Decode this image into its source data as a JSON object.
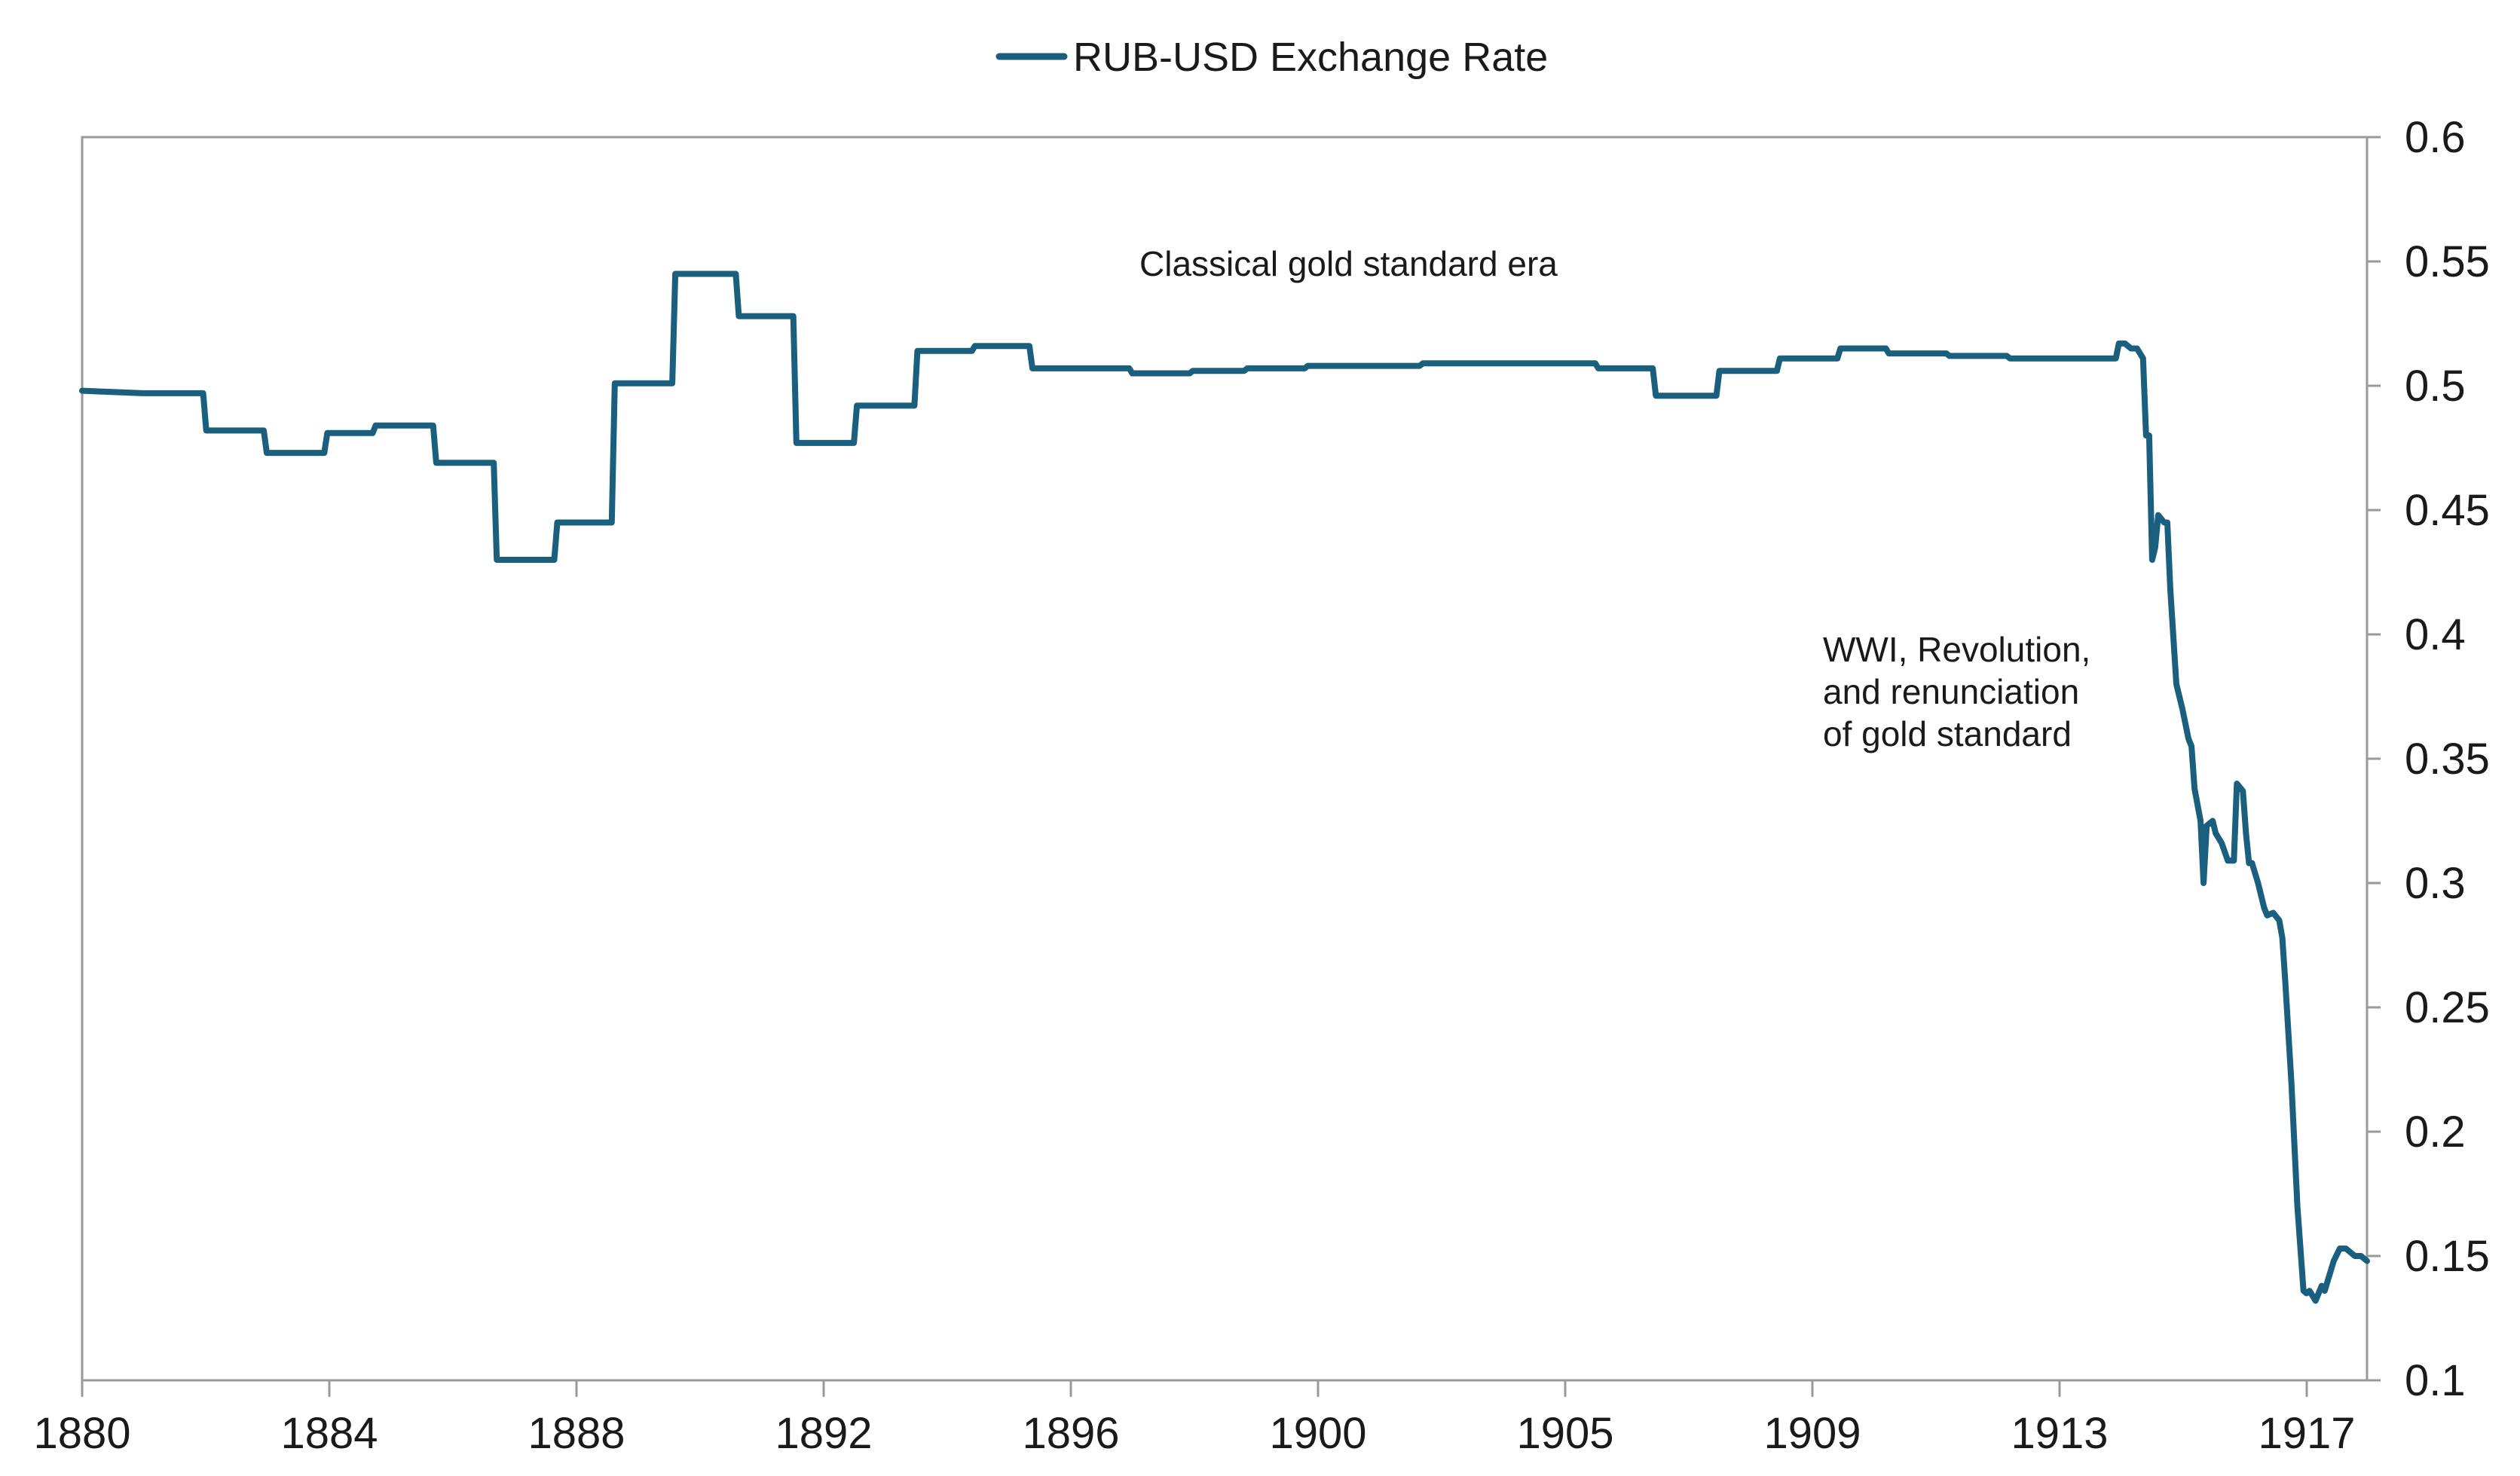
{
  "chart_data": {
    "type": "line",
    "title": "",
    "xlabel": "",
    "ylabel": "",
    "ylim": [
      0.1,
      0.6
    ],
    "y_ticks": [
      "0.1",
      "0.15",
      "0.2",
      "0.25",
      "0.3",
      "0.35",
      "0.4",
      "0.45",
      "0.5",
      "0.55",
      "0.6"
    ],
    "y_axis_side": "right",
    "x_tick_labels": [
      "1880",
      "1884",
      "1888",
      "1892",
      "1896",
      "1900",
      "1905",
      "1909",
      "1913",
      "1917"
    ],
    "grid": false,
    "legend_position": "top-center",
    "series": [
      {
        "name": "RUB-USD Exchange Rate",
        "color": "#1b5f7e",
        "x": [
          1880.0,
          1881.0,
          1882.0,
          1882.05,
          1883.0,
          1883.05,
          1884.0,
          1884.05,
          1884.8,
          1884.85,
          1885.8,
          1885.85,
          1886.8,
          1886.85,
          1887.8,
          1887.85,
          1888.75,
          1888.8,
          1889.75,
          1889.8,
          1890.8,
          1890.85,
          1891.75,
          1891.8,
          1892.75,
          1892.8,
          1893.75,
          1893.8,
          1894.7,
          1894.75,
          1895.65,
          1895.7,
          1897.3,
          1897.35,
          1898.3,
          1898.35,
          1899.2,
          1899.25,
          1900.2,
          1900.25,
          1901.2,
          1901.25,
          1902.1,
          1902.15,
          1903.1,
          1903.15,
          1904.0,
          1904.05,
          1905.0,
          1905.05,
          1905.95,
          1906.0,
          1907.0,
          1907.05,
          1908.0,
          1908.05,
          1909.0,
          1909.05,
          1909.8,
          1909.85,
          1910.8,
          1910.85,
          1911.8,
          1911.85,
          1912.7,
          1912.75,
          1913.6,
          1913.65,
          1913.75,
          1913.85,
          1913.95,
          1914.05,
          1914.1,
          1914.15,
          1914.2,
          1914.25,
          1914.3,
          1914.4,
          1914.45,
          1914.5,
          1914.6,
          1914.7,
          1914.8,
          1914.85,
          1914.9,
          1915.0,
          1915.05,
          1915.1,
          1915.2,
          1915.25,
          1915.3,
          1915.35,
          1915.45,
          1915.55,
          1915.6,
          1915.7,
          1915.75,
          1915.8,
          1915.85,
          1915.95,
          1916.05,
          1916.1,
          1916.2,
          1916.3,
          1916.35,
          1916.4,
          1916.5,
          1916.6,
          1916.7,
          1916.75,
          1916.8,
          1916.9,
          1917.0,
          1917.05,
          1917.1,
          1917.2,
          1917.3,
          1917.4,
          1917.45,
          1917.5,
          1917.55,
          1917.65,
          1917.7,
          1917.75
        ],
        "y": [
          0.498,
          0.497,
          0.497,
          0.482,
          0.482,
          0.473,
          0.473,
          0.481,
          0.481,
          0.484,
          0.484,
          0.469,
          0.469,
          0.43,
          0.43,
          0.445,
          0.445,
          0.501,
          0.501,
          0.545,
          0.545,
          0.528,
          0.528,
          0.477,
          0.477,
          0.492,
          0.492,
          0.514,
          0.514,
          0.516,
          0.516,
          0.507,
          0.507,
          0.505,
          0.505,
          0.506,
          0.506,
          0.507,
          0.507,
          0.508,
          0.508,
          0.508,
          0.508,
          0.509,
          0.509,
          0.509,
          0.509,
          0.509,
          0.509,
          0.507,
          0.507,
          0.496,
          0.496,
          0.506,
          0.506,
          0.511,
          0.511,
          0.515,
          0.515,
          0.513,
          0.513,
          0.512,
          0.512,
          0.511,
          0.511,
          0.511,
          0.511,
          0.517,
          0.517,
          0.515,
          0.515,
          0.511,
          0.48,
          0.48,
          0.43,
          0.435,
          0.448,
          0.445,
          0.445,
          0.418,
          0.38,
          0.37,
          0.358,
          0.355,
          0.338,
          0.325,
          0.3,
          0.323,
          0.325,
          0.32,
          0.318,
          0.316,
          0.309,
          0.309,
          0.34,
          0.337,
          0.32,
          0.308,
          0.308,
          0.3,
          0.29,
          0.287,
          0.288,
          0.285,
          0.278,
          0.26,
          0.22,
          0.17,
          0.136,
          0.135,
          0.136,
          0.132,
          0.138,
          0.136,
          0.14,
          0.148,
          0.153,
          0.153,
          0.152,
          0.151,
          0.15,
          0.15,
          0.149,
          0.148
        ]
      }
    ],
    "annotations": [
      {
        "lines": [
          "Classical gold standard era"
        ]
      },
      {
        "lines": [
          "WWI, Revolution,",
          "and renunciation",
          "of gold standard"
        ]
      }
    ]
  }
}
